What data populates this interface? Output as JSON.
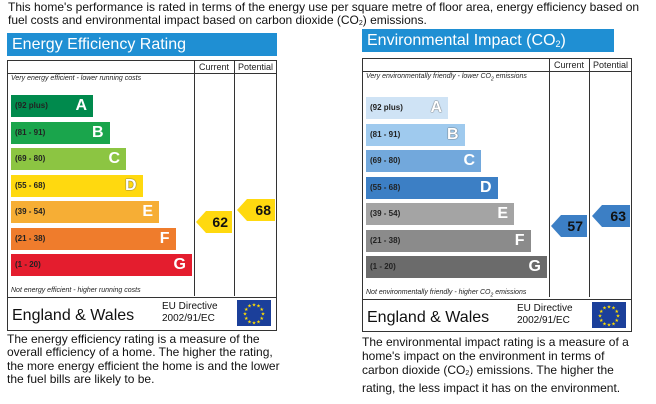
{
  "intro": {
    "before": "This home's performance is rated in terms of the energy use per square metre of floor area, energy efficiency based on fuel costs and environmental impact based on carbon dioxide (CO",
    "sub": "2",
    "after": ") emissions."
  },
  "energy": {
    "title": "Energy Efficiency Rating",
    "col_current": "Current",
    "col_potential": "Potential",
    "top_note": "Very energy efficient - lower running costs",
    "bottom_note": "Not energy efficient - higher running costs",
    "bands": [
      {
        "range": "(92 plus)",
        "letter": "A",
        "color": "#008a4d"
      },
      {
        "range": "(81 - 91)",
        "letter": "B",
        "color": "#1aa54c"
      },
      {
        "range": "(69 - 80)",
        "letter": "C",
        "color": "#8cc542"
      },
      {
        "range": "(55 - 68)",
        "letter": "D",
        "color": "#ffd90f"
      },
      {
        "range": "(39 - 54)",
        "letter": "E",
        "color": "#f6ae35"
      },
      {
        "range": "(21 - 38)",
        "letter": "F",
        "color": "#ef7c2c"
      },
      {
        "range": "(1 - 20)",
        "letter": "G",
        "color": "#e41d2e"
      }
    ],
    "current": "62",
    "potential": "68",
    "current_color": "#ffd90f",
    "potential_color": "#ffd90f",
    "region": "England & Wales",
    "directive_line1": "EU Directive",
    "directive_line2": "2002/91/EC",
    "description": "The energy efficiency rating is a measure of the overall efficiency of a home. The higher the rating, the more energy efficient the home is and the lower the fuel bills are likely to be."
  },
  "environment": {
    "title_before": "Environmental Impact (CO",
    "title_sub": "2",
    "title_after": ") Rating",
    "col_current": "Current",
    "col_potential": "Potential",
    "top_note_before": "Very environmentally friendly - lower CO",
    "top_note_sub": "2",
    "top_note_after": " emissions",
    "bottom_note_before": "Not environmentally friendly - higher CO",
    "bottom_note_sub": "2",
    "bottom_note_after": " emissions",
    "bands": [
      {
        "range": "(92 plus)",
        "letter": "A",
        "color": "#cfe3f5"
      },
      {
        "range": "(81 - 91)",
        "letter": "B",
        "color": "#9fcaee"
      },
      {
        "range": "(69 - 80)",
        "letter": "C",
        "color": "#72a8dc"
      },
      {
        "range": "(55 - 68)",
        "letter": "D",
        "color": "#3c7fc5"
      },
      {
        "range": "(39 - 54)",
        "letter": "E",
        "color": "#a4a4a4"
      },
      {
        "range": "(21 - 38)",
        "letter": "F",
        "color": "#8b8b8b"
      },
      {
        "range": "(1 - 20)",
        "letter": "G",
        "color": "#6b6b6b"
      }
    ],
    "current": "57",
    "potential": "63",
    "current_color": "#3c7fc5",
    "potential_color": "#3c7fc5",
    "region": "England & Wales",
    "directive_line1": "EU Directive",
    "directive_line2": "2002/91/EC",
    "description_before": "The environmental impact rating is a measure of a home's impact on the environment in terms of carbon dioxide (CO",
    "description_sub": "2",
    "description_after": ") emissions. The higher the rating, the less impact it has on the environment."
  }
}
